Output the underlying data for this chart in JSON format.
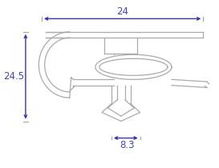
{
  "bg_color": "#ffffff",
  "line_color": "#aaaaaa",
  "dim_color": "#3333aa",
  "dim_text_color": "#4444bb",
  "dim_24_label": "24",
  "dim_245_label": "24.5",
  "dim_83_label": "8.3",
  "figsize": [
    2.73,
    2.1
  ],
  "dpi": 100,
  "xlim": [
    0,
    28
  ],
  "ylim": [
    -3.5,
    17
  ]
}
